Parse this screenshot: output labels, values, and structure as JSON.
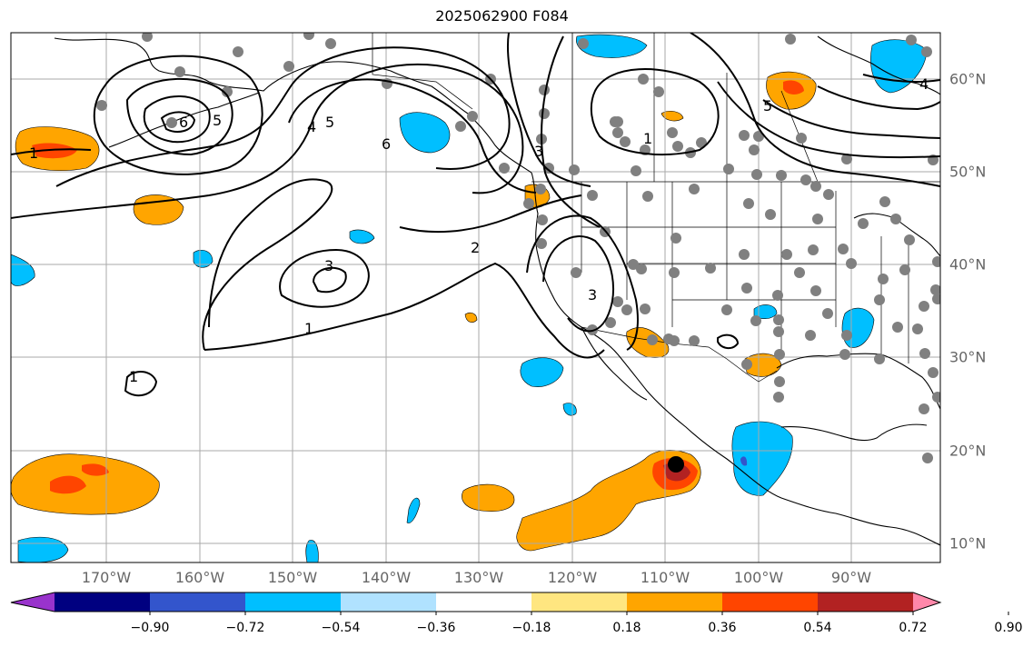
{
  "title": "2025062900 F084",
  "longitude_labels": [
    "170°W",
    "160°W",
    "150°W",
    "140°W",
    "130°W",
    "120°W",
    "110°W",
    "100°W",
    "90°W"
  ],
  "latitude_labels": [
    "60°N",
    "50°N",
    "40°N",
    "30°N",
    "20°N",
    "10°N"
  ],
  "colorbar": {
    "ticks": [
      "−0.90",
      "−0.72",
      "−0.54",
      "−0.36",
      "−0.18",
      "0.18",
      "0.36",
      "0.54",
      "0.72",
      "0.90"
    ],
    "colors": [
      "#9933cc",
      "#000080",
      "#3355cc",
      "#00bfff",
      "#b0e2ff",
      "#ffffff",
      "#ffe680",
      "#ffa500",
      "#ff4500",
      "#b22222",
      "#ff88aa"
    ]
  },
  "contour_labels": [
    "1",
    "1",
    "1",
    "1",
    "2",
    "3",
    "3",
    "3",
    "4",
    "4",
    "5",
    "5",
    "5",
    "6",
    "6"
  ],
  "colors": {
    "gridline": "#aaaaaa",
    "contour": "#000000",
    "station": "#808080",
    "storm_center": "#000000"
  }
}
